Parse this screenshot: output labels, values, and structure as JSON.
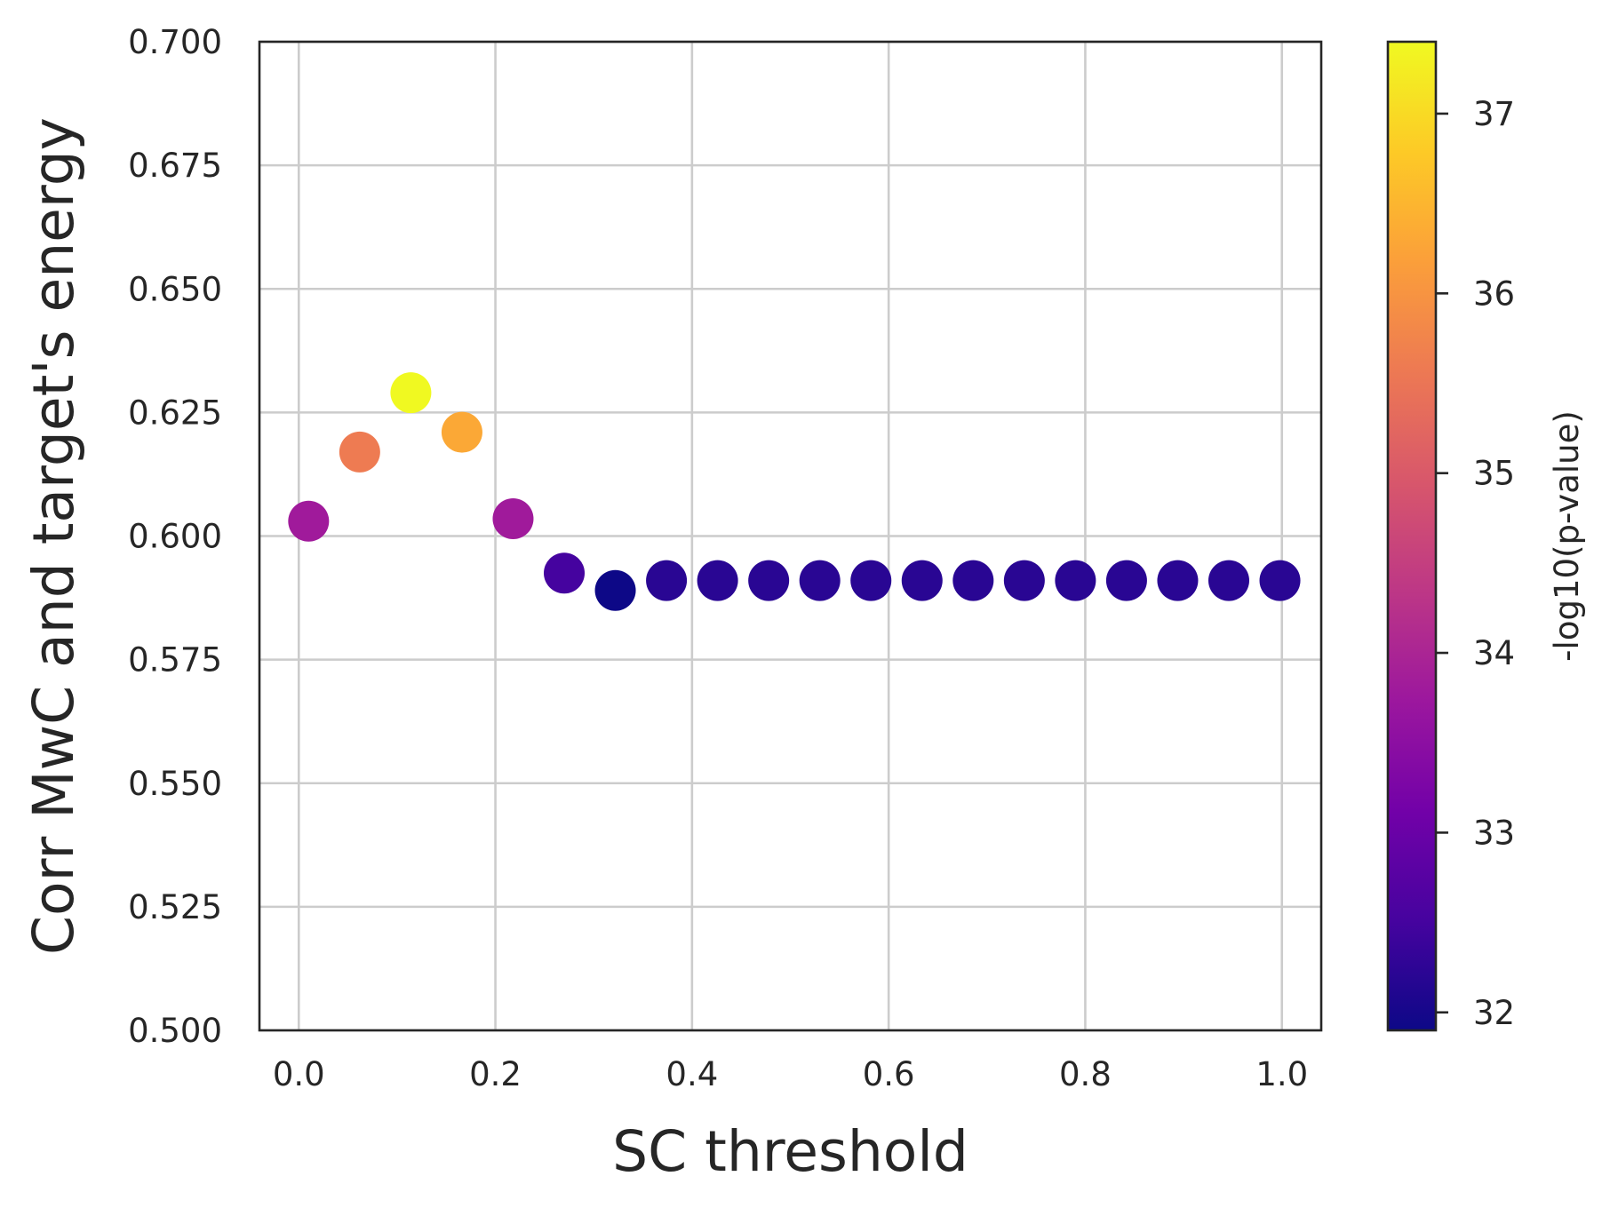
{
  "chart_data": {
    "type": "scatter",
    "title": "",
    "xlabel": "SC threshold",
    "ylabel": "Corr MwC and target's energy",
    "xlim": [
      -0.04,
      1.04
    ],
    "ylim": [
      0.5,
      0.7
    ],
    "x_ticks": [
      "0.0",
      "0.2",
      "0.4",
      "0.6",
      "0.8",
      "1.0"
    ],
    "y_ticks": [
      "0.500",
      "0.525",
      "0.550",
      "0.575",
      "0.600",
      "0.625",
      "0.650",
      "0.675",
      "0.700"
    ],
    "grid": true,
    "legend": "none",
    "points": [
      {
        "x": 0.01,
        "y": 0.603,
        "c": 33.8
      },
      {
        "x": 0.062,
        "y": 0.617,
        "c": 35.6
      },
      {
        "x": 0.114,
        "y": 0.629,
        "c": 37.4
      },
      {
        "x": 0.166,
        "y": 0.621,
        "c": 36.3
      },
      {
        "x": 0.218,
        "y": 0.6035,
        "c": 33.8
      },
      {
        "x": 0.27,
        "y": 0.5925,
        "c": 32.5
      },
      {
        "x": 0.322,
        "y": 0.589,
        "c": 31.9
      },
      {
        "x": 0.374,
        "y": 0.591,
        "c": 32.2
      },
      {
        "x": 0.426,
        "y": 0.591,
        "c": 32.2
      },
      {
        "x": 0.478,
        "y": 0.591,
        "c": 32.2
      },
      {
        "x": 0.53,
        "y": 0.591,
        "c": 32.2
      },
      {
        "x": 0.582,
        "y": 0.591,
        "c": 32.2
      },
      {
        "x": 0.634,
        "y": 0.591,
        "c": 32.2
      },
      {
        "x": 0.686,
        "y": 0.591,
        "c": 32.2
      },
      {
        "x": 0.738,
        "y": 0.591,
        "c": 32.2
      },
      {
        "x": 0.79,
        "y": 0.591,
        "c": 32.2
      },
      {
        "x": 0.842,
        "y": 0.591,
        "c": 32.2
      },
      {
        "x": 0.894,
        "y": 0.591,
        "c": 32.2
      },
      {
        "x": 0.946,
        "y": 0.591,
        "c": 32.2
      },
      {
        "x": 0.998,
        "y": 0.591,
        "c": 32.2
      }
    ],
    "colorbar": {
      "label": "-log10(p-value)",
      "colormap": "plasma",
      "range": [
        31.9,
        37.4
      ],
      "ticks": [
        "32",
        "33",
        "34",
        "35",
        "36",
        "37"
      ],
      "stops": [
        "#0d0887",
        "#46039f",
        "#7201a8",
        "#9c179e",
        "#bd3786",
        "#d8576b",
        "#ed7953",
        "#fb9f3a",
        "#fdca26",
        "#f0f921"
      ]
    }
  }
}
